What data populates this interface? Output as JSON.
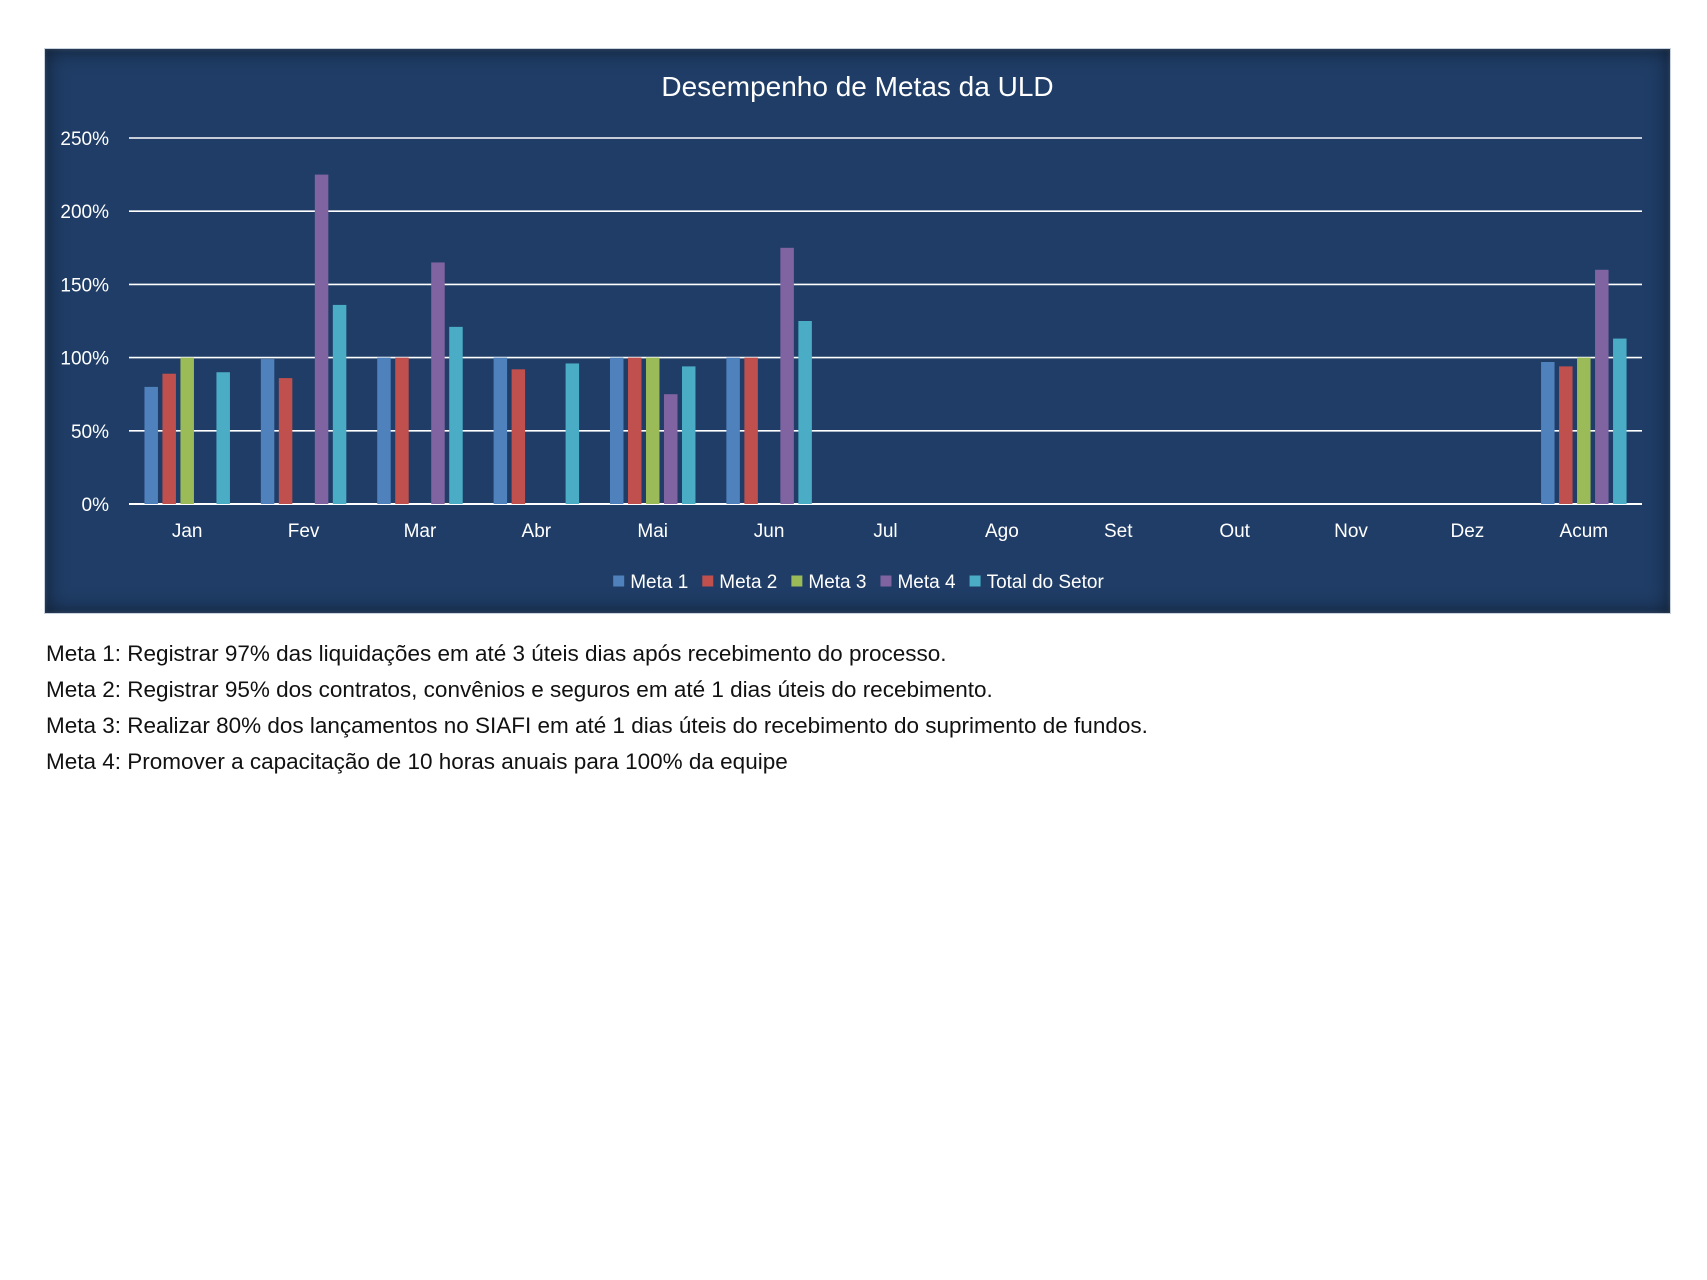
{
  "chart_data": {
    "type": "bar",
    "title": "Desempenho de Metas da ULD",
    "categories": [
      "Jan",
      "Fev",
      "Mar",
      "Abr",
      "Mai",
      "Jun",
      "Jul",
      "Ago",
      "Set",
      "Out",
      "Nov",
      "Dez",
      "Acum"
    ],
    "y_ticks": [
      "0%",
      "50%",
      "100%",
      "150%",
      "200%",
      "250%"
    ],
    "ylim": [
      0,
      250
    ],
    "grid": "horizontal",
    "legend_position": "bottom",
    "series": [
      {
        "name": "Meta 1",
        "color": "#4f81bd",
        "values": [
          80,
          99,
          100,
          100,
          100,
          100,
          null,
          null,
          null,
          null,
          null,
          null,
          97
        ]
      },
      {
        "name": "Meta 2",
        "color": "#c0504d",
        "values": [
          89,
          86,
          100,
          92,
          100,
          100,
          null,
          null,
          null,
          null,
          null,
          null,
          94
        ]
      },
      {
        "name": "Meta 3",
        "color": "#9bbb59",
        "values": [
          100,
          null,
          null,
          null,
          100,
          null,
          null,
          null,
          null,
          null,
          null,
          null,
          100
        ]
      },
      {
        "name": "Meta 4",
        "color": "#8064a2",
        "values": [
          null,
          225,
          165,
          null,
          75,
          175,
          null,
          null,
          null,
          null,
          null,
          null,
          160
        ]
      },
      {
        "name": "Total do Setor",
        "color": "#4bacc6",
        "values": [
          90,
          136,
          121,
          96,
          94,
          125,
          null,
          null,
          null,
          null,
          null,
          null,
          113
        ]
      }
    ]
  },
  "notes": [
    "Meta 1: Registrar 97% das liquidações em até 3 úteis dias após recebimento do processo.",
    "Meta 2: Registrar 95% dos contratos, convênios e seguros em até 1 dias úteis do recebimento.",
    "Meta 3: Realizar 80% dos lançamentos no SIAFI em até 1 dias úteis do recebimento do suprimento de fundos.",
    "Meta 4: Promover a capacitação de 10 horas anuais para 100% da equipe"
  ]
}
